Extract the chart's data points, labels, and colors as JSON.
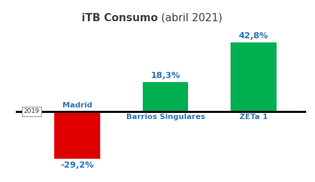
{
  "title_bold": "iTB Consumo",
  "title_normal": " (abril 2021)",
  "categories": [
    "Madrid",
    "Barrios Singulares",
    "ZETa 1"
  ],
  "values": [
    -29.2,
    18.3,
    42.8
  ],
  "bar_colors": [
    "#e00000",
    "#00b050",
    "#00b050"
  ],
  "label_color": "#2e75b6",
  "value_labels": [
    "-29,2%",
    "18,3%",
    "42,8%"
  ],
  "cat_labels": [
    "Madrid",
    "Barrios Singulares",
    "ZETa 1"
  ],
  "ylim": [
    -38,
    52
  ],
  "baseline_label": "2019",
  "background_color": "#ffffff",
  "bar_width": 0.52,
  "title_color": "#404040"
}
